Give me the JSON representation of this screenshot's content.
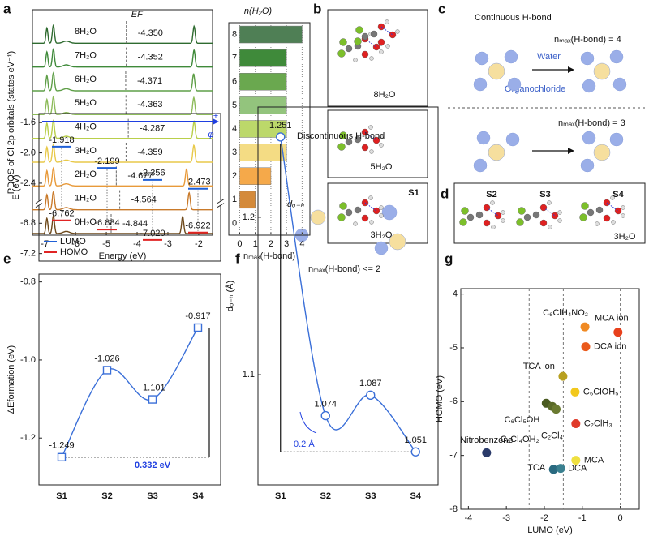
{
  "panel_labels": [
    "a",
    "b",
    "c",
    "d",
    "e",
    "f",
    "g"
  ],
  "panels": {
    "b": {
      "labels": [
        "8H₂O",
        "5H₂O",
        "S1",
        "3H₂O"
      ]
    },
    "c": {
      "title": "Continuous H-bond",
      "top_label": "nₘₐₓ(H-bond) = 4",
      "water": "Water",
      "organochloride": "Organochloride",
      "bottom_label": "nₘₐₓ(H-bond) = 3"
    },
    "d": {
      "labels": [
        "S2",
        "S3",
        "S4",
        "3H₂O"
      ]
    }
  },
  "chart_data": [
    {
      "type": "pdos",
      "xlabel": "Energy (eV)",
      "ylabel": "PDOS of Cl 2p orbitals (states eV⁻¹)",
      "annotation": "EF",
      "xlim": [
        -7.4,
        -1.55
      ],
      "xticks": [
        -7,
        -6,
        -5,
        -4,
        -3,
        -2
      ],
      "series": [
        {
          "name": "8H₂O",
          "color": "#2f6b30",
          "fermi": -4.35,
          "fermi_label": "-4.350"
        },
        {
          "name": "7H₂O",
          "color": "#3f8a3a",
          "fermi": -4.352,
          "fermi_label": "-4.352"
        },
        {
          "name": "6H₂O",
          "color": "#5f9f48",
          "fermi": -4.371,
          "fermi_label": "-4.371"
        },
        {
          "name": "5H₂O",
          "color": "#8dbb5a",
          "fermi": -4.363,
          "fermi_label": "-4.363"
        },
        {
          "name": "4H₂O",
          "color": "#b9cf4a",
          "fermi": -4.287,
          "fermi_label": "-4.287"
        },
        {
          "name": "3H₂O",
          "color": "#e8c94a",
          "fermi": -4.359,
          "fermi_label": "-4.359"
        },
        {
          "name": "2H₂O",
          "color": "#e89a3a",
          "fermi": -4.677,
          "fermi_label": "-4.677"
        },
        {
          "name": "1H₂O",
          "color": "#c97a2a",
          "fermi": -4.564,
          "fermi_label": "-4.564"
        },
        {
          "name": "0H₂O",
          "color": "#6e4a1c",
          "fermi": -4.844,
          "fermi_label": "-4.844"
        }
      ]
    },
    {
      "type": "barh",
      "title": "n(H₂O)",
      "xlabel": "nₘₐₓ(H-bond)",
      "categories": [
        "8",
        "7",
        "6",
        "5",
        "4",
        "3",
        "2",
        "1",
        "0"
      ],
      "values": [
        4,
        3,
        3,
        3,
        3,
        3,
        2,
        1,
        0
      ],
      "colors": [
        "#4f7f55",
        "#3f8a3a",
        "#6aa84f",
        "#93c47d",
        "#bcd86a",
        "#f4dc84",
        "#f5a94a",
        "#d48a3a",
        "#a0683a"
      ],
      "xlim": [
        -0.7,
        4.5
      ],
      "xticks": [
        0,
        1,
        2,
        3,
        4
      ],
      "grid": true
    },
    {
      "type": "levels",
      "ylabel": "E (eV)",
      "series": [
        {
          "name": "LUMO",
          "color": "#1f5fd6",
          "values": [
            -1.918,
            -2.199,
            -2.356,
            -2.473
          ]
        },
        {
          "name": "HOMO",
          "color": "#e02424",
          "values": [
            -6.762,
            -6.884,
            -7.02,
            -6.922
          ],
          "value_labels": [
            "-6.762",
            "-6.884",
            "-7.020",
            "-6.922"
          ]
        }
      ],
      "ylim": [
        -7.3,
        -1.48
      ],
      "ybreak": [
        -2.6,
        -6.6
      ],
      "yticks": [
        -1.6,
        {
          "value": -2,
          "label": "-2.0"
        },
        -2.4,
        -6.8,
        -7.2
      ],
      "legend": "lower left",
      "arrow_label": "φ",
      "arrow_sign": "+"
    },
    {
      "type": "line",
      "ylabel": "ΔEformation (eV)",
      "categories": [
        "S1",
        "S2",
        "S3",
        "S4"
      ],
      "values": [
        -1.249,
        -1.026,
        -1.101,
        -0.917
      ],
      "color": "#3a6fd8",
      "marker": "square",
      "ylim": [
        -1.32,
        -0.78
      ],
      "yticks": [
        -0.8,
        {
          "value": -1,
          "label": "-1.0"
        },
        -1.2
      ],
      "annotation": "0.332 eV"
    },
    {
      "type": "line",
      "title": "Discontinuous H-bond",
      "ylabel": "dₒ₋ₕ (Å)",
      "categories": [
        "S1",
        "S2",
        "S3",
        "S4"
      ],
      "values": [
        1.251,
        1.074,
        1.087,
        1.051
      ],
      "color": "#3a6fd8",
      "marker": "circle",
      "ylim": [
        1.03,
        1.27
      ],
      "yticks": [
        1.1,
        1.2
      ],
      "annotations": [
        "dₒ₋ₕ",
        "nₘₐₓ(H-bond) <= 2",
        "0.2 Å"
      ]
    },
    {
      "type": "scatter",
      "xlabel": "LUMO (eV)",
      "ylabel": "HOMO (eV)",
      "labels": [
        "MCA ion",
        "C₆ClH₄NO₂",
        "DCA ion",
        "TCA ion",
        "C₆ClOH₅",
        "C₆Cl₅OH",
        "C₆Cl₄OH₂",
        "C₂Cl₄",
        "C₂ClH₃",
        "MCA",
        "Nitrobenzene",
        "TCA",
        "DCA"
      ],
      "x": [
        -0.06,
        -0.93,
        -0.91,
        -1.51,
        -1.19,
        -1.95,
        -1.79,
        -1.69,
        -1.17,
        -1.17,
        -3.52,
        -1.76,
        -1.57
      ],
      "values": [
        -4.71,
        -4.61,
        -4.98,
        -5.53,
        -5.82,
        -6.03,
        -6.09,
        -6.14,
        -6.41,
        -7.09,
        -6.95,
        -7.26,
        -7.24
      ],
      "colors": [
        "#e8401c",
        "#f08a24",
        "#ea5a1c",
        "#b8a020",
        "#f2c81c",
        "#4a5a20",
        "#5a6a28",
        "#6a7a30",
        "#e03a2a",
        "#efe040",
        "#2a3a6a",
        "#2a6a80",
        "#3a8090"
      ],
      "xlim": [
        -4.2,
        0.5
      ],
      "ylim": [
        -8,
        -3.9
      ],
      "xticks": [
        -4,
        -3,
        -2,
        -1,
        0
      ],
      "yticks": [
        -4,
        -5,
        -6,
        -7,
        -8
      ],
      "vlines": [
        -2.4,
        -1.5,
        0
      ]
    }
  ]
}
